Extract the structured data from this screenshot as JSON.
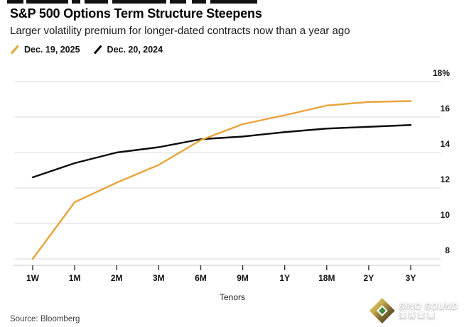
{
  "header": {
    "title": "S&P 500 Options Term Structure Steepens",
    "subtitle": "Larger volatility premium for longer-dated contracts now than a year ago",
    "legend": [
      {
        "label": "Dec. 19, 2025",
        "color": "#E8A33C"
      },
      {
        "label": "Dec. 20, 2024",
        "color": "#0B0B0B"
      }
    ]
  },
  "chart_data": {
    "type": "line",
    "title": "S&P 500 Options Term Structure Steepens",
    "subtitle": "Larger volatility premium for longer-dated contracts now than a year ago",
    "categories": [
      "1W",
      "1M",
      "2M",
      "3M",
      "6M",
      "9M",
      "1Y",
      "18M",
      "2Y",
      "3Y"
    ],
    "series": [
      {
        "name": "Dec. 19, 2025",
        "color": "#E8A33C",
        "values": [
          8.0,
          11.2,
          12.3,
          13.3,
          14.7,
          15.6,
          16.1,
          16.65,
          16.85,
          16.9
        ]
      },
      {
        "name": "Dec. 20, 2024",
        "color": "#0B0B0B",
        "values": [
          12.6,
          13.4,
          14.0,
          14.3,
          14.75,
          14.9,
          15.15,
          15.35,
          15.45,
          15.55
        ]
      }
    ],
    "xlabel": "Tenors",
    "ylabel": "",
    "y_ticks": {
      "values": [
        18,
        16,
        14,
        12,
        10,
        8
      ],
      "labels": [
        "18%",
        "16",
        "14",
        "12",
        "10",
        "8"
      ]
    },
    "ylim": [
      7.6,
      18.8
    ],
    "unit": "%",
    "grid": "horizontal",
    "legend_position": "top-left",
    "y_axis_side": "right"
  },
  "footer": {
    "source": "Source: Bloomberg"
  },
  "watermark": {
    "brand": "SINO SOUND",
    "brand_cjk": "漢聲集團"
  }
}
